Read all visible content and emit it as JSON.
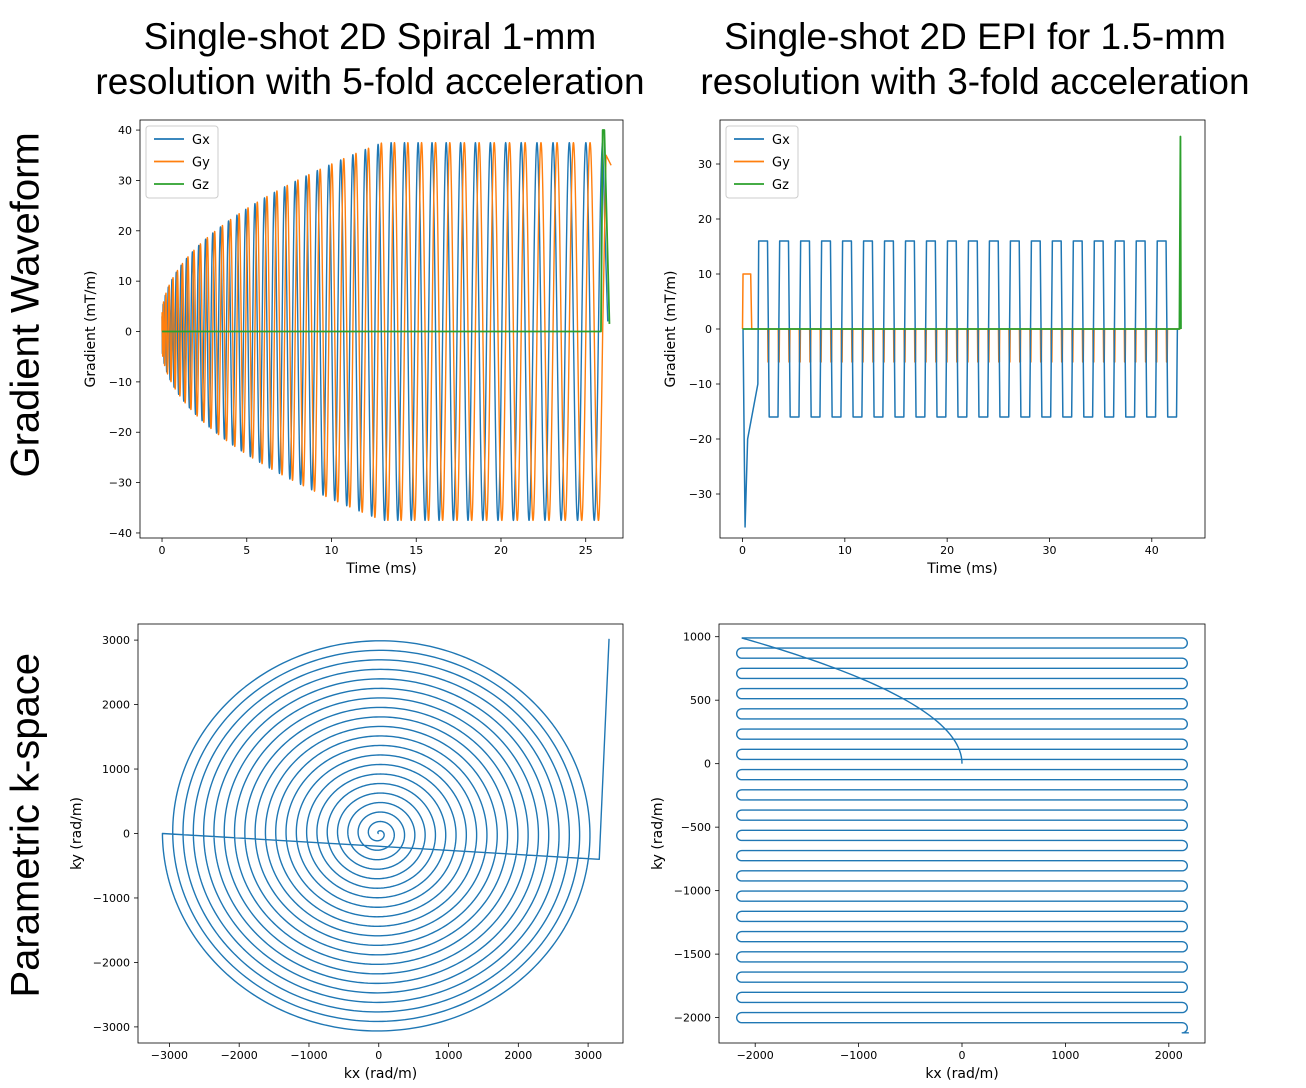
{
  "titles": {
    "col1_line1": "Single-shot 2D Spiral 1-mm",
    "col1_line2": "resolution with 5-fold acceleration",
    "col2_line1": "Single-shot 2D EPI for 1.5-mm",
    "col2_line2": "resolution with 3-fold acceleration",
    "row1": "Gradient Waveform",
    "row2": "Parametric k-space"
  },
  "colors": {
    "Gx": "#1f77b4",
    "Gy": "#ff7f0e",
    "Gz": "#2ca02c"
  },
  "chart_data": [
    {
      "id": "spiral_gradient",
      "type": "line",
      "title": "",
      "xlabel": "Time (ms)",
      "ylabel": "Gradient (mT/m)",
      "xlim": [
        -1.3,
        27.2
      ],
      "ylim": [
        -41,
        42
      ],
      "xticks": [
        0,
        5,
        10,
        15,
        20,
        25
      ],
      "yticks": [
        -40,
        -30,
        -20,
        -10,
        0,
        10,
        20,
        30,
        40
      ],
      "legend": [
        "Gx",
        "Gy",
        "Gz"
      ],
      "legend_loc": "upper left",
      "description_values": {
        "duration_ms": 26,
        "amplitude_start_mT_m": 3,
        "amplitude_max_mT_m": 37.5,
        "oscillation_cycles": 42,
        "Gz_peak_mT_m": 40,
        "Gz_peak_time_ms": 26
      }
    },
    {
      "id": "epi_gradient",
      "type": "line",
      "title": "",
      "xlabel": "Time (ms)",
      "ylabel": "Gradient (mT/m)",
      "xlim": [
        -2.2,
        45.2
      ],
      "ylim": [
        -38,
        38
      ],
      "xticks": [
        0,
        10,
        20,
        30,
        40
      ],
      "yticks": [
        -30,
        -20,
        -10,
        0,
        10,
        20,
        30
      ],
      "legend": [
        "Gx",
        "Gy",
        "Gz"
      ],
      "legend_loc": "upper left",
      "description_values": {
        "Gx_prephaser_mT_m": -36,
        "Gx_readout_amplitude_mT_m": 16,
        "readout_lines": 40,
        "readout_start_ms": 1.5,
        "readout_end_ms": 42.5,
        "Gy_prephaser_mT_m": 10,
        "Gy_blip_mT_m": -6,
        "Gz_peak_mT_m": 35,
        "Gz_peak_time_ms": 42.8
      }
    },
    {
      "id": "spiral_kspace",
      "type": "line",
      "title": "",
      "xlabel": "kx (rad/m)",
      "ylabel": "ky (rad/m)",
      "xlim": [
        -3450,
        3500
      ],
      "ylim": [
        -3250,
        3250
      ],
      "xticks": [
        -3000,
        -2000,
        -1000,
        0,
        1000,
        2000,
        3000
      ],
      "yticks": [
        -3000,
        -2000,
        -1000,
        0,
        1000,
        2000,
        3000
      ],
      "description_values": {
        "turns": 21,
        "max_radius_rad_m": 3100,
        "rewinder_end": [
          3300,
          3020
        ]
      }
    },
    {
      "id": "epi_kspace",
      "type": "line",
      "title": "",
      "xlabel": "kx (rad/m)",
      "ylabel": "ky (rad/m)",
      "xlim": [
        -2350,
        2350
      ],
      "ylim": [
        -2200,
        1100
      ],
      "xticks": [
        -2000,
        -1000,
        0,
        1000,
        2000
      ],
      "yticks": [
        -2000,
        -1500,
        -1000,
        -500,
        0,
        500,
        1000
      ],
      "description_values": {
        "kx_extent": 2130,
        "ky_top": 990,
        "ky_bottom": -2120,
        "lines": 40
      }
    }
  ]
}
